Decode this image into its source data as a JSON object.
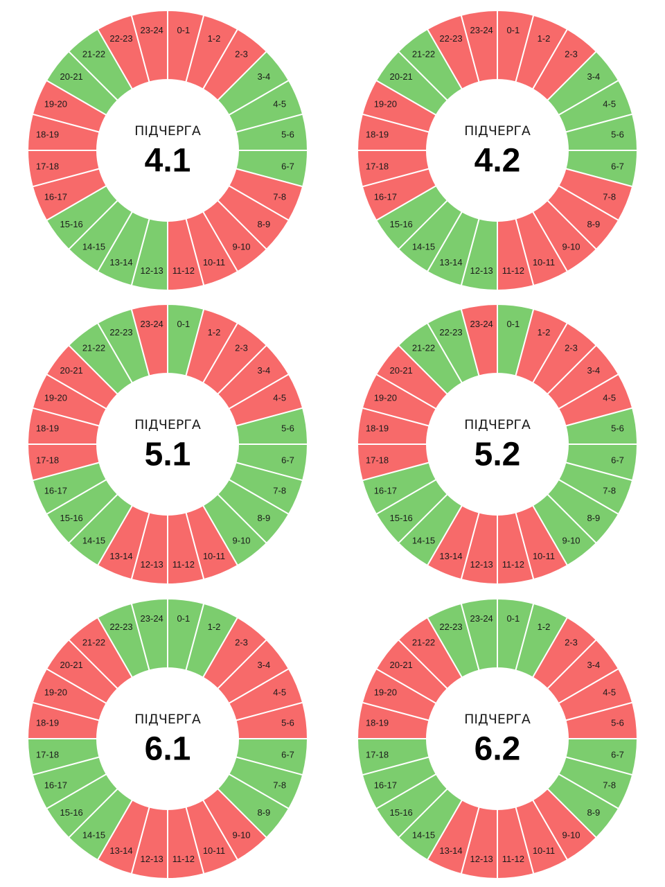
{
  "colors": {
    "on": "#7ccd6e",
    "off": "#f76a6a",
    "divider": "#ffffff",
    "background": "#ffffff"
  },
  "hour_labels": [
    "0-1",
    "1-2",
    "2-3",
    "3-4",
    "4-5",
    "5-6",
    "6-7",
    "7-8",
    "8-9",
    "9-10",
    "10-11",
    "11-12",
    "12-13",
    "13-14",
    "14-15",
    "15-16",
    "16-17",
    "17-18",
    "18-19",
    "19-20",
    "20-21",
    "21-22",
    "22-23",
    "23-24"
  ],
  "chart_data": [
    {
      "type": "pie",
      "title": "ПІДЧЕРГА",
      "subgroup": "4.1",
      "categories": [
        "0-1",
        "1-2",
        "2-3",
        "3-4",
        "4-5",
        "5-6",
        "6-7",
        "7-8",
        "8-9",
        "9-10",
        "10-11",
        "11-12",
        "12-13",
        "13-14",
        "14-15",
        "15-16",
        "16-17",
        "17-18",
        "18-19",
        "19-20",
        "20-21",
        "21-22",
        "22-23",
        "23-24"
      ],
      "status": [
        "off",
        "off",
        "off",
        "on",
        "on",
        "on",
        "on",
        "off",
        "off",
        "off",
        "off",
        "off",
        "on",
        "on",
        "on",
        "on",
        "off",
        "off",
        "off",
        "off",
        "on",
        "on",
        "off",
        "off"
      ]
    },
    {
      "type": "pie",
      "title": "ПІДЧЕРГА",
      "subgroup": "4.2",
      "categories": [
        "0-1",
        "1-2",
        "2-3",
        "3-4",
        "4-5",
        "5-6",
        "6-7",
        "7-8",
        "8-9",
        "9-10",
        "10-11",
        "11-12",
        "12-13",
        "13-14",
        "14-15",
        "15-16",
        "16-17",
        "17-18",
        "18-19",
        "19-20",
        "20-21",
        "21-22",
        "22-23",
        "23-24"
      ],
      "status": [
        "off",
        "off",
        "off",
        "on",
        "on",
        "on",
        "on",
        "off",
        "off",
        "off",
        "off",
        "off",
        "on",
        "on",
        "on",
        "on",
        "off",
        "off",
        "off",
        "off",
        "on",
        "on",
        "off",
        "off"
      ]
    },
    {
      "type": "pie",
      "title": "ПІДЧЕРГА",
      "subgroup": "5.1",
      "categories": [
        "0-1",
        "1-2",
        "2-3",
        "3-4",
        "4-5",
        "5-6",
        "6-7",
        "7-8",
        "8-9",
        "9-10",
        "10-11",
        "11-12",
        "12-13",
        "13-14",
        "14-15",
        "15-16",
        "16-17",
        "17-18",
        "18-19",
        "19-20",
        "20-21",
        "21-22",
        "22-23",
        "23-24"
      ],
      "status": [
        "on",
        "off",
        "off",
        "off",
        "off",
        "on",
        "on",
        "on",
        "on",
        "on",
        "off",
        "off",
        "off",
        "off",
        "on",
        "on",
        "on",
        "off",
        "off",
        "off",
        "off",
        "on",
        "on",
        "off"
      ]
    },
    {
      "type": "pie",
      "title": "ПІДЧЕРГА",
      "subgroup": "5.2",
      "categories": [
        "0-1",
        "1-2",
        "2-3",
        "3-4",
        "4-5",
        "5-6",
        "6-7",
        "7-8",
        "8-9",
        "9-10",
        "10-11",
        "11-12",
        "12-13",
        "13-14",
        "14-15",
        "15-16",
        "16-17",
        "17-18",
        "18-19",
        "19-20",
        "20-21",
        "21-22",
        "22-23",
        "23-24"
      ],
      "status": [
        "on",
        "off",
        "off",
        "off",
        "off",
        "on",
        "on",
        "on",
        "on",
        "on",
        "off",
        "off",
        "off",
        "off",
        "on",
        "on",
        "on",
        "off",
        "off",
        "off",
        "off",
        "on",
        "on",
        "off"
      ]
    },
    {
      "type": "pie",
      "title": "ПІДЧЕРГА",
      "subgroup": "6.1",
      "categories": [
        "0-1",
        "1-2",
        "2-3",
        "3-4",
        "4-5",
        "5-6",
        "6-7",
        "7-8",
        "8-9",
        "9-10",
        "10-11",
        "11-12",
        "12-13",
        "13-14",
        "14-15",
        "15-16",
        "16-17",
        "17-18",
        "18-19",
        "19-20",
        "20-21",
        "21-22",
        "22-23",
        "23-24"
      ],
      "status": [
        "on",
        "on",
        "off",
        "off",
        "off",
        "off",
        "on",
        "on",
        "on",
        "off",
        "off",
        "off",
        "off",
        "off",
        "on",
        "on",
        "on",
        "on",
        "off",
        "off",
        "off",
        "off",
        "on",
        "on"
      ]
    },
    {
      "type": "pie",
      "title": "ПІДЧЕРГА",
      "subgroup": "6.2",
      "categories": [
        "0-1",
        "1-2",
        "2-3",
        "3-4",
        "4-5",
        "5-6",
        "6-7",
        "7-8",
        "8-9",
        "9-10",
        "10-11",
        "11-12",
        "12-13",
        "13-14",
        "14-15",
        "15-16",
        "16-17",
        "17-18",
        "18-19",
        "19-20",
        "20-21",
        "21-22",
        "22-23",
        "23-24"
      ],
      "status": [
        "on",
        "on",
        "off",
        "off",
        "off",
        "off",
        "on",
        "on",
        "on",
        "off",
        "off",
        "off",
        "off",
        "off",
        "on",
        "on",
        "on",
        "on",
        "off",
        "off",
        "off",
        "off",
        "on",
        "on"
      ]
    }
  ]
}
